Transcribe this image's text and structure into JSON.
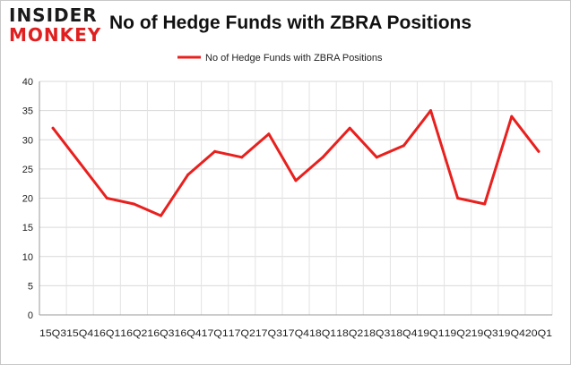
{
  "brand": {
    "logo_line1": "INSIDER",
    "logo_line2": "MONKEY",
    "logo_color": "#e02020"
  },
  "chart_data": {
    "type": "line",
    "title": "No of Hedge Funds with ZBRA Positions",
    "xlabel": "",
    "ylabel": "",
    "ylim": [
      0,
      40
    ],
    "yticks": [
      0,
      5,
      10,
      15,
      20,
      25,
      30,
      35,
      40
    ],
    "grid": true,
    "legend_position": "top-center",
    "x_tick_text": "15Q315Q416Q116Q216Q316Q417Q117Q217Q317Q418Q118Q218Q318Q419Q119Q219Q319Q420Q1",
    "categories": [
      "15Q3",
      "15Q4",
      "16Q1",
      "16Q2",
      "16Q3",
      "16Q4",
      "17Q1",
      "17Q2",
      "17Q3",
      "17Q4",
      "18Q1",
      "18Q2",
      "18Q3",
      "18Q4",
      "19Q1",
      "19Q2",
      "19Q3",
      "19Q4",
      "20Q1"
    ],
    "series": [
      {
        "name": "No of Hedge Funds with ZBRA Positions",
        "color": "#e8201e",
        "values": [
          32,
          26,
          20,
          19,
          17,
          24,
          28,
          27,
          31,
          23,
          27,
          32,
          27,
          29,
          35,
          20,
          19,
          34,
          28
        ]
      }
    ]
  }
}
